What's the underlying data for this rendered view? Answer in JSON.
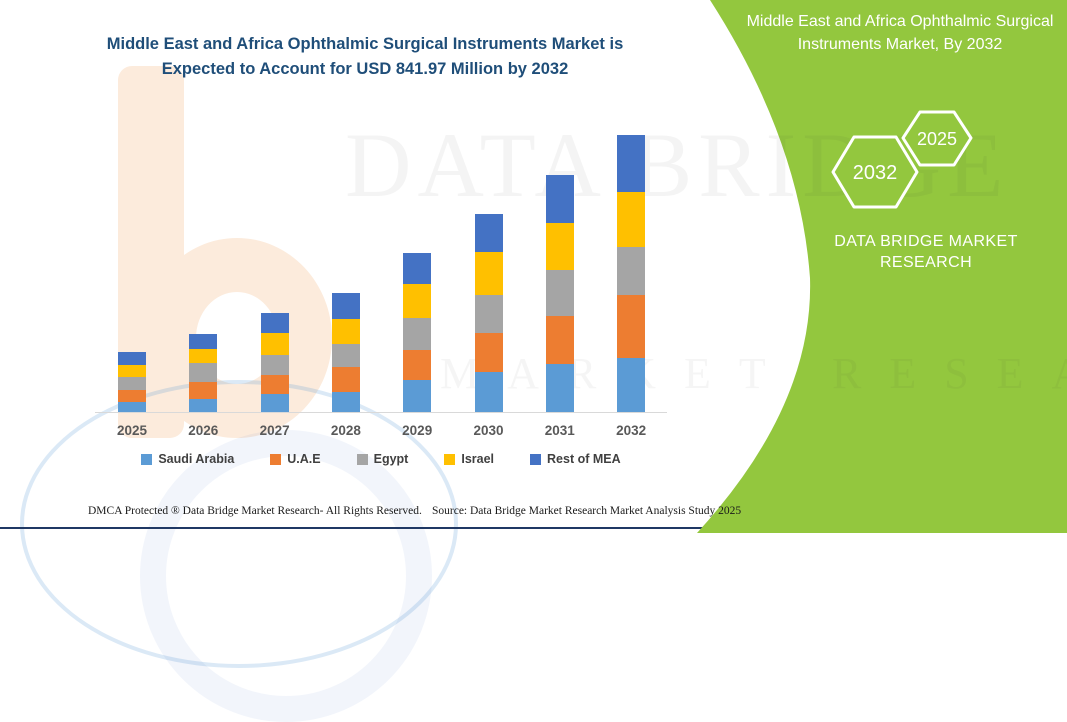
{
  "header": {
    "title": "Middle East and Africa Ophthalmic Surgical Instruments Market is Expected to Account for USD 841.97 Million by 2032"
  },
  "side_panel": {
    "title": "Middle East and Africa Ophthalmic Surgical Instruments Market, By 2032",
    "hexagons": {
      "large": "2032",
      "small": "2025"
    },
    "brand": "DATA BRIDGE MARKET RESEARCH",
    "bg_color": "#93C73E"
  },
  "watermark": {
    "row1": "DATA BRIDGE",
    "row2": "MARKET RESEARCH"
  },
  "chart_data": {
    "type": "bar",
    "stacked": true,
    "unit": "USD Million",
    "title": "Middle East and Africa Ophthalmic Surgical Instruments Market is Expected to Account for USD 841.97 Million by 2032",
    "xlabel": "",
    "ylabel": "",
    "axis_labels_shown": false,
    "grid": false,
    "legend_position": "bottom",
    "highlight_total_2032": 841.97,
    "categories": [
      "2025",
      "2026",
      "2027",
      "2028",
      "2029",
      "2030",
      "2031",
      "2032"
    ],
    "series": [
      {
        "name": "Saudi Arabia",
        "color": "#5B9BD5",
        "values": [
          30,
          41,
          56,
          61,
          96,
          122,
          146,
          164
        ]
      },
      {
        "name": "U.A.E",
        "color": "#ED7D31",
        "values": [
          37,
          51,
          56,
          76,
          93,
          119,
          147,
          191
        ]
      },
      {
        "name": "Egypt",
        "color": "#A5A5A5",
        "values": [
          38,
          58,
          63,
          71,
          97,
          116,
          140,
          146
        ]
      },
      {
        "name": "Israel",
        "color": "#FFC000",
        "values": [
          38,
          43,
          64,
          76,
          103,
          129,
          142,
          167
        ]
      },
      {
        "name": "Rest of MEA",
        "color": "#4472C4",
        "values": [
          40,
          45,
          63,
          78,
          94,
          115,
          145,
          174
        ]
      }
    ]
  },
  "footer": {
    "left": "DMCA Protected ® Data Bridge Market Research-  All Rights Reserved.",
    "right": "Source: Data Bridge Market Research  Market Analysis Study 2025"
  }
}
